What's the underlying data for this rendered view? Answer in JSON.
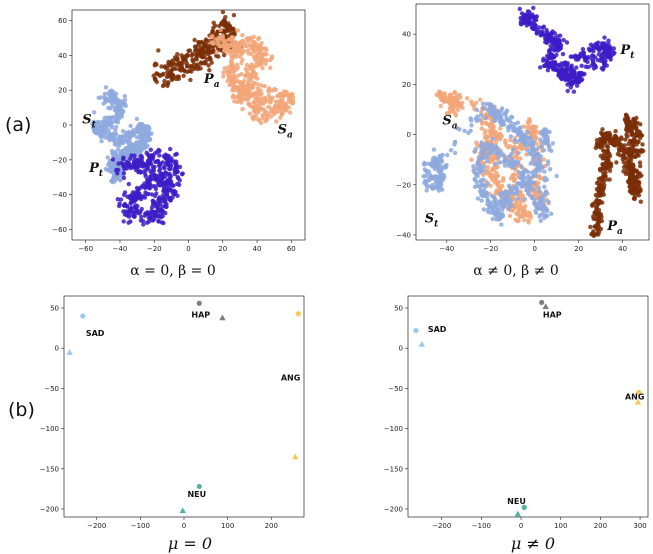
{
  "panels": [
    {
      "label": "(a)"
    },
    {
      "label": "(b)"
    }
  ],
  "colors": {
    "Pa": "#7b2e06",
    "Sa": "#f2a678",
    "St": "#8ea9de",
    "Pt": "#3d1cc7",
    "SAD": "#8ec3f0",
    "HAP": "#707070",
    "ANG": "#f5c242",
    "NEU": "#3fae8a"
  },
  "chart_data": [
    {
      "type": "scatter",
      "caption": "α = 0, β = 0",
      "xticks": [
        -60,
        -40,
        -20,
        0,
        20,
        40,
        60
      ],
      "yticks": [
        -60,
        -40,
        -20,
        0,
        20,
        40,
        60
      ],
      "xlim": [
        -68,
        68
      ],
      "ylim": [
        -66,
        66
      ],
      "clusters": [
        {
          "name": "Pa",
          "label": "P",
          "sub": "a",
          "label_at": [
            9,
            24
          ],
          "path": [
            [
              -20,
              29
            ],
            [
              -10,
              34
            ],
            [
              0,
              38
            ],
            [
              8,
              44
            ],
            [
              16,
              50
            ],
            [
              22,
              58
            ],
            [
              25,
              52
            ],
            [
              20,
              46
            ],
            [
              12,
              40
            ],
            [
              5,
              35
            ],
            [
              -5,
              30
            ],
            [
              -15,
              26
            ]
          ],
          "spread": 3.2
        },
        {
          "name": "Sa",
          "label": "S",
          "sub": "a",
          "label_at": [
            52,
            -5
          ],
          "path": [
            [
              15,
              48
            ],
            [
              22,
              44
            ],
            [
              30,
              45
            ],
            [
              38,
              46
            ],
            [
              43,
              42
            ],
            [
              42,
              34
            ],
            [
              36,
              28
            ],
            [
              30,
              22
            ],
            [
              36,
              20
            ],
            [
              45,
              16
            ],
            [
              55,
              16
            ],
            [
              58,
              12
            ],
            [
              50,
              8
            ],
            [
              42,
              6
            ],
            [
              34,
              12
            ],
            [
              28,
              18
            ],
            [
              24,
              28
            ],
            [
              28,
              38
            ],
            [
              24,
              52
            ]
          ],
          "spread": 2.6
        },
        {
          "name": "St",
          "label": "S",
          "sub": "t",
          "label_at": [
            -62,
            1
          ],
          "path": [
            [
              -48,
              15
            ],
            [
              -44,
              17
            ],
            [
              -40,
              12
            ],
            [
              -42,
              5
            ],
            [
              -48,
              0
            ],
            [
              -54,
              -2
            ],
            [
              -50,
              -5
            ],
            [
              -44,
              -7
            ],
            [
              -38,
              -9
            ],
            [
              -32,
              -4
            ],
            [
              -26,
              -2
            ],
            [
              -24,
              -6
            ],
            [
              -28,
              -12
            ],
            [
              -36,
              -16
            ],
            [
              -42,
              -18
            ],
            [
              -46,
              -24
            ],
            [
              -40,
              -26
            ],
            [
              -44,
              -30
            ],
            [
              -38,
              -20
            ],
            [
              -32,
              -14
            ],
            [
              -28,
              -10
            ]
          ],
          "spread": 2.0
        },
        {
          "name": "Pt",
          "label": "P",
          "sub": "t",
          "label_at": [
            -58,
            -27
          ],
          "path": [
            [
              -40,
              -24
            ],
            [
              -34,
              -22
            ],
            [
              -28,
              -24
            ],
            [
              -22,
              -20
            ],
            [
              -16,
              -18
            ],
            [
              -10,
              -20
            ],
            [
              -8,
              -28
            ],
            [
              -14,
              -32
            ],
            [
              -20,
              -30
            ],
            [
              -24,
              -36
            ],
            [
              -30,
              -40
            ],
            [
              -36,
              -44
            ],
            [
              -34,
              -50
            ],
            [
              -24,
              -54
            ],
            [
              -16,
              -52
            ],
            [
              -18,
              -44
            ],
            [
              -12,
              -40
            ],
            [
              -10,
              -36
            ]
          ],
          "spread": 2.6
        }
      ]
    },
    {
      "type": "scatter",
      "caption": "α ≠ 0, β ≠ 0",
      "xticks": [
        -40,
        -20,
        0,
        20,
        40
      ],
      "yticks": [
        -40,
        -20,
        0,
        20,
        40
      ],
      "xlim": [
        -54,
        52
      ],
      "ylim": [
        -42,
        52
      ],
      "clusters": [
        {
          "name": "Pt",
          "label": "P",
          "sub": "t",
          "label_at": [
            39,
            32
          ],
          "path": [
            [
              -6,
              47
            ],
            [
              -2,
              47
            ],
            [
              -4,
              45
            ],
            [
              4,
              40
            ],
            [
              8,
              38
            ],
            [
              12,
              36
            ],
            [
              8,
              32
            ],
            [
              6,
              28
            ],
            [
              12,
              26
            ],
            [
              14,
              22
            ],
            [
              20,
              24
            ],
            [
              18,
              20
            ],
            [
              14,
              28
            ],
            [
              26,
              34
            ],
            [
              32,
              36
            ],
            [
              34,
              32
            ],
            [
              30,
              28
            ],
            [
              22,
              30
            ]
          ],
          "spread": 1.4
        },
        {
          "name": "Sa",
          "label": "S",
          "sub": "a",
          "label_at": [
            -42,
            4
          ],
          "path": [
            [
              -44,
              16
            ],
            [
              -38,
              14
            ],
            [
              -36,
              10
            ],
            [
              -40,
              14
            ],
            [
              -22,
              10
            ],
            [
              -20,
              4
            ],
            [
              -22,
              -4
            ],
            [
              -18,
              -10
            ],
            [
              -20,
              -16
            ],
            [
              -16,
              -22
            ],
            [
              -12,
              -26
            ],
            [
              -8,
              -30
            ],
            [
              -4,
              -34
            ],
            [
              -10,
              -14
            ],
            [
              -6,
              -4
            ],
            [
              -2,
              4
            ],
            [
              2,
              -8
            ],
            [
              0,
              -20
            ],
            [
              4,
              -28
            ],
            [
              -14,
              0
            ],
            [
              -24,
              -6
            ],
            [
              -26,
              -12
            ]
          ],
          "spread": 1.7
        },
        {
          "name": "St",
          "label": "S",
          "sub": "t",
          "label_at": [
            -50,
            -35
          ],
          "path": [
            [
              -48,
              -10
            ],
            [
              -44,
              -12
            ],
            [
              -42,
              -18
            ],
            [
              -46,
              -20
            ],
            [
              -50,
              -16
            ],
            [
              -22,
              12
            ],
            [
              -18,
              8
            ],
            [
              -12,
              6
            ],
            [
              -8,
              2
            ],
            [
              -4,
              -2
            ],
            [
              0,
              -6
            ],
            [
              2,
              -14
            ],
            [
              -4,
              -20
            ],
            [
              -10,
              -22
            ],
            [
              -14,
              -26
            ],
            [
              -16,
              -32
            ],
            [
              -20,
              -28
            ],
            [
              -24,
              -22
            ],
            [
              -26,
              -14
            ],
            [
              -22,
              -4
            ],
            [
              -14,
              -10
            ],
            [
              -8,
              -12
            ],
            [
              0,
              -26
            ],
            [
              4,
              -32
            ],
            [
              6,
              -4
            ],
            [
              4,
              2
            ]
          ],
          "spread": 1.6
        },
        {
          "name": "Pa",
          "label": "P",
          "sub": "a",
          "label_at": [
            33,
            -38
          ],
          "path": [
            [
              28,
              -40
            ],
            [
              29,
              -34
            ],
            [
              28,
              -28
            ],
            [
              30,
              -22
            ],
            [
              32,
              -16
            ],
            [
              34,
              -10
            ],
            [
              30,
              -4
            ],
            [
              32,
              0
            ],
            [
              36,
              -2
            ],
            [
              40,
              -6
            ],
            [
              43,
              -12
            ],
            [
              45,
              -18
            ],
            [
              46,
              -24
            ],
            [
              44,
              -18
            ],
            [
              44,
              -10
            ],
            [
              44,
              -2
            ],
            [
              42,
              6
            ],
            [
              46,
              4
            ],
            [
              48,
              -2
            ],
            [
              46,
              -26
            ]
          ],
          "spread": 1.3
        }
      ]
    },
    {
      "type": "scatter",
      "caption": "μ = 0",
      "xticks": [
        -200,
        -100,
        0,
        100,
        200
      ],
      "yticks": [
        50,
        0,
        -50,
        -100,
        -150,
        -200
      ],
      "xlim": [
        -275,
        275
      ],
      "ylim": [
        -210,
        65
      ],
      "points": [
        {
          "emotion": "SAD",
          "marker": "circle",
          "x": -232,
          "y": 40
        },
        {
          "emotion": "SAD",
          "marker": "triangle",
          "x": -262,
          "y": -5
        },
        {
          "emotion": "HAP",
          "marker": "circle",
          "x": 35,
          "y": 56
        },
        {
          "emotion": "HAP",
          "marker": "triangle",
          "x": 88,
          "y": 38
        },
        {
          "emotion": "ANG",
          "marker": "circle",
          "x": 262,
          "y": 43
        },
        {
          "emotion": "ANG",
          "marker": "triangle",
          "x": 255,
          "y": -135
        },
        {
          "emotion": "NEU",
          "marker": "circle",
          "x": 35,
          "y": -172
        },
        {
          "emotion": "NEU",
          "marker": "triangle",
          "x": -3,
          "y": -202
        }
      ],
      "labels": [
        {
          "text": "SAD",
          "x": -225,
          "y": 15
        },
        {
          "text": "HAP",
          "x": 17,
          "y": 38
        },
        {
          "text": "ANG",
          "x": 222,
          "y": -40
        },
        {
          "text": "NEU",
          "x": 8,
          "y": -185
        }
      ]
    },
    {
      "type": "scatter",
      "caption": "μ ≠ 0",
      "xticks": [
        -200,
        -100,
        0,
        100,
        200,
        300
      ],
      "yticks": [
        50,
        0,
        -50,
        -100,
        -150,
        -200
      ],
      "xlim": [
        -285,
        320
      ],
      "ylim": [
        -210,
        65
      ],
      "points": [
        {
          "emotion": "SAD",
          "marker": "circle",
          "x": -265,
          "y": 22
        },
        {
          "emotion": "SAD",
          "marker": "triangle",
          "x": -250,
          "y": 5
        },
        {
          "emotion": "HAP",
          "marker": "circle",
          "x": 52,
          "y": 57
        },
        {
          "emotion": "HAP",
          "marker": "triangle",
          "x": 62,
          "y": 52
        },
        {
          "emotion": "ANG",
          "marker": "circle",
          "x": 297,
          "y": -55
        },
        {
          "emotion": "ANG",
          "marker": "triangle",
          "x": 295,
          "y": -67
        },
        {
          "emotion": "NEU",
          "marker": "circle",
          "x": 8,
          "y": -198
        },
        {
          "emotion": "NEU",
          "marker": "triangle",
          "x": -8,
          "y": -206
        }
      ],
      "labels": [
        {
          "text": "SAD",
          "x": -235,
          "y": 20
        },
        {
          "text": "HAP",
          "x": 55,
          "y": 38
        },
        {
          "text": "ANG",
          "x": 262,
          "y": -64
        },
        {
          "text": "NEU",
          "x": -35,
          "y": -194
        }
      ]
    }
  ]
}
